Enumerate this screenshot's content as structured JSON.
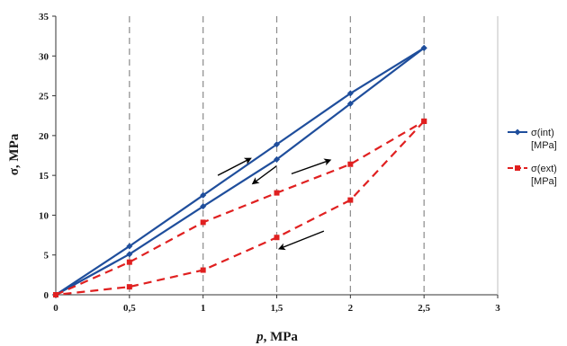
{
  "chart_data": {
    "type": "line",
    "xlabel_italic": "p",
    "xlabel_rest": ", MPa",
    "ylabel": "σ, MPa",
    "xlim": [
      0,
      3
    ],
    "ylim": [
      0,
      35
    ],
    "x_ticks": [
      "0",
      "0,5",
      "1",
      "1,5",
      "2",
      "2,5",
      "3"
    ],
    "x_tick_values": [
      0,
      0.5,
      1,
      1.5,
      2,
      2.5,
      3
    ],
    "y_ticks": [
      "0",
      "5",
      "10",
      "15",
      "20",
      "25",
      "30",
      "35"
    ],
    "y_tick_values": [
      0,
      5,
      10,
      15,
      20,
      25,
      30,
      35
    ],
    "vertical_dashed_grid_at": [
      0.5,
      1,
      1.5,
      2,
      2.5
    ],
    "legend_position": "right",
    "series": [
      {
        "name": "σ(int)",
        "name_line2": "[MPa]",
        "color": "#1f4e9c",
        "line_style": "solid",
        "marker": "diamond",
        "loading": {
          "x": [
            0,
            0.5,
            1,
            1.5,
            2,
            2.5
          ],
          "y": [
            0,
            6.1,
            12.5,
            18.9,
            25.3,
            31.0
          ]
        },
        "unloading": {
          "x": [
            2.5,
            2,
            1.5,
            1,
            0.5,
            0
          ],
          "y": [
            31.0,
            24.0,
            17.0,
            11.1,
            5.1,
            0
          ]
        }
      },
      {
        "name": "σ(ext)",
        "name_line2": "[MPa]",
        "color": "#e02020",
        "line_style": "dashed",
        "marker": "square",
        "loading": {
          "x": [
            0,
            0.5,
            1,
            1.5,
            2,
            2.5
          ],
          "y": [
            0,
            4.1,
            9.1,
            12.8,
            16.4,
            21.8
          ]
        },
        "unloading": {
          "x": [
            2.5,
            2,
            1.5,
            1,
            0.5,
            0
          ],
          "y": [
            21.8,
            11.9,
            7.2,
            3.1,
            1.0,
            0
          ]
        }
      }
    ],
    "annotations": [
      {
        "kind": "arrow",
        "from": [
          1.1,
          15.0
        ],
        "to": [
          1.32,
          17.1
        ]
      },
      {
        "kind": "arrow",
        "from": [
          1.5,
          16.2
        ],
        "to": [
          1.34,
          14.0
        ]
      },
      {
        "kind": "arrow",
        "from": [
          1.6,
          15.2
        ],
        "to": [
          1.86,
          16.9
        ]
      },
      {
        "kind": "arrow",
        "from": [
          1.82,
          8.0
        ],
        "to": [
          1.52,
          5.8
        ]
      }
    ]
  }
}
